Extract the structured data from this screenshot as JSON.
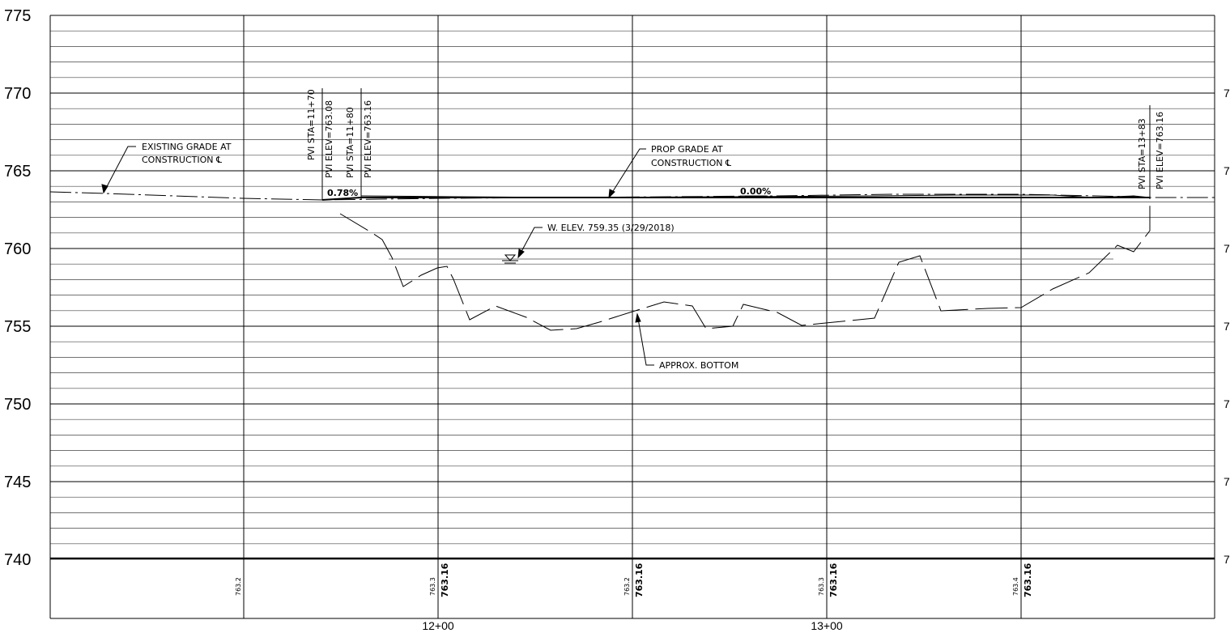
{
  "profile": {
    "y_ticks": [
      "775",
      "770",
      "765",
      "760",
      "755",
      "750",
      "745",
      "740"
    ],
    "y_ticks_right_cut": [
      "7",
      "7",
      "7",
      "7",
      "7",
      "7",
      "7"
    ],
    "x_ticks": [
      "12+00",
      "13+00"
    ],
    "y_range_elev_ft": [
      740,
      775
    ],
    "station_range": [
      "11+00",
      "13+00"
    ]
  },
  "annotations": {
    "existing_grade_line1": "EXISTING GRADE AT",
    "existing_grade_line2": "CONSTRUCTION ℄",
    "prop_grade_line1": "PROP GRADE AT",
    "prop_grade_line2": "CONSTRUCTION ℄",
    "water_elev": "W. ELEV. 759.35 (3/29/2018)",
    "approx_bottom": "APPROX. BOTTOM",
    "slope1": "0.78%",
    "slope2": "0.00%"
  },
  "pvi": [
    {
      "sta": "PVI STA=11+70",
      "elev": "PVI ELEV=763.08"
    },
    {
      "sta": "PVI STA=11+80",
      "elev": "PVI ELEV=763.16"
    },
    {
      "sta": "PVI STA=13+83",
      "elev": "PVI ELEV=763.16"
    }
  ],
  "bottom_band": {
    "existing": [
      "763.2",
      "763.3",
      "763.2",
      "763.3",
      "763.4"
    ],
    "proposed": [
      "763.16",
      "763.16",
      "763.16",
      "763.16"
    ]
  },
  "lines": {
    "existing_grade_elev_ft": [
      [
        11.0,
        763.6
      ],
      [
        11.3,
        763.4
      ],
      [
        11.7,
        763.1
      ],
      [
        11.8,
        763.1
      ],
      [
        12.5,
        763.2
      ],
      [
        13.0,
        763.3
      ],
      [
        13.6,
        763.4
      ],
      [
        13.83,
        763.2
      ],
      [
        14.0,
        763.2
      ]
    ],
    "channel_bottom_elev_ft": [
      [
        11.8,
        762.2
      ],
      [
        11.93,
        757.6
      ],
      [
        12.13,
        755.4
      ],
      [
        12.4,
        754.8
      ],
      [
        12.8,
        756.3
      ],
      [
        12.93,
        755.0
      ],
      [
        13.08,
        756.2
      ],
      [
        13.45,
        759.5
      ],
      [
        13.78,
        758.3
      ],
      [
        13.83,
        761.2
      ]
    ],
    "proposed_grade_elev_ft": [
      [
        11.7,
        763.08
      ],
      [
        11.8,
        763.16
      ],
      [
        13.83,
        763.16
      ]
    ],
    "water_elev_ft": 759.35
  }
}
